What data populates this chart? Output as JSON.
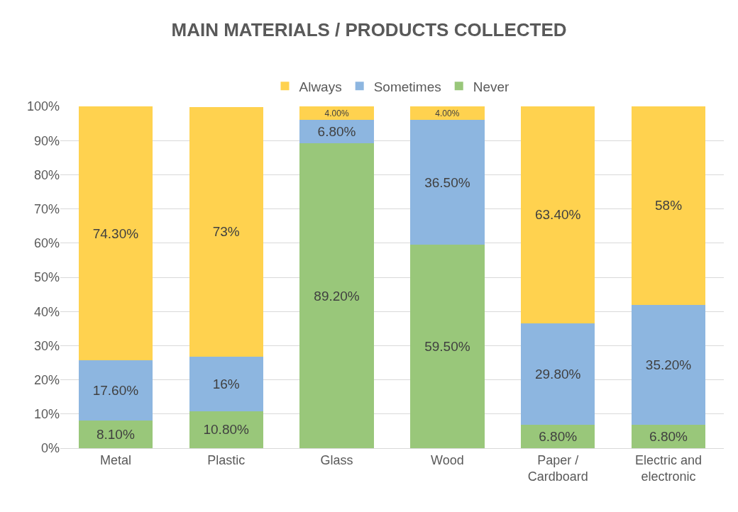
{
  "chart_data": {
    "type": "bar",
    "title": "MAIN MATERIALS / PRODUCTS COLLECTED",
    "stacked": true,
    "legend": "top",
    "grid": "y",
    "categories": [
      "Metal",
      "Plastic",
      "Glass",
      "Wood",
      "Paper / Cardboard",
      "Electric and electronic"
    ],
    "ylim": [
      0,
      100
    ],
    "yticks": [
      {
        "value": 0,
        "label": "0%"
      },
      {
        "value": 10,
        "label": "10%"
      },
      {
        "value": 20,
        "label": "20%"
      },
      {
        "value": 30,
        "label": "30%"
      },
      {
        "value": 40,
        "label": "40%"
      },
      {
        "value": 50,
        "label": "50%"
      },
      {
        "value": 60,
        "label": "60%"
      },
      {
        "value": 70,
        "label": "70%"
      },
      {
        "value": 80,
        "label": "80%"
      },
      {
        "value": 90,
        "label": "90%"
      },
      {
        "value": 100,
        "label": "100%"
      }
    ],
    "series": [
      {
        "name": "Never",
        "color": "#99c77a",
        "values": [
          8.1,
          10.8,
          89.2,
          59.5,
          6.8,
          6.8
        ],
        "value_labels": [
          "8.10%",
          "10.80%",
          "89.20%",
          "59.50%",
          "6.80%",
          "6.80%"
        ]
      },
      {
        "name": "Sometimes",
        "color": "#8db6e0",
        "values": [
          17.6,
          16,
          6.8,
          36.5,
          29.8,
          35.2
        ],
        "value_labels": [
          "17.60%",
          "16%",
          "6.80%",
          "36.50%",
          "29.80%",
          "35.20%"
        ]
      },
      {
        "name": "Always",
        "color": "#ffd24f",
        "values": [
          74.3,
          73,
          4.0,
          4.0,
          63.4,
          58
        ],
        "value_labels": [
          "74.30%",
          "73%",
          "4.00%",
          "4.00%",
          "63.40%",
          "58%"
        ]
      }
    ]
  }
}
